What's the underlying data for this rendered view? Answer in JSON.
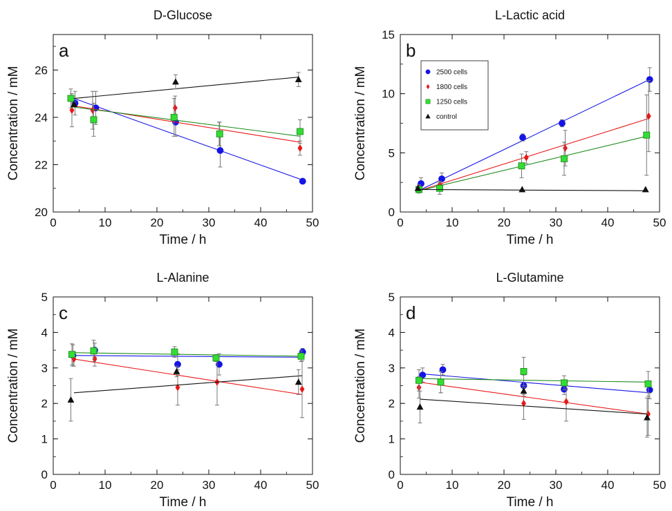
{
  "chart_data": [
    {
      "type": "scatter",
      "panel_letter": "a",
      "title": "D-Glucose",
      "xlabel": "Time / h",
      "ylabel": "Concentration / mM",
      "xlim": [
        0,
        50
      ],
      "ylim": [
        20,
        27.5
      ],
      "xticks": [
        0,
        10,
        20,
        30,
        40,
        50
      ],
      "yticks": [
        20,
        22,
        24,
        26
      ],
      "fit_lines": true,
      "legend": false,
      "series": [
        {
          "name": "2500 cells",
          "color": "#1414e6",
          "marker": "circle",
          "points": [
            {
              "x": 4.2,
              "y": 24.6,
              "err": 0.5
            },
            {
              "x": 8.2,
              "y": 24.4,
              "err": 0.7
            },
            {
              "x": 23.6,
              "y": 23.8,
              "err": 0.6
            },
            {
              "x": 32.2,
              "y": 22.6,
              "err": 0.7
            },
            {
              "x": 48.1,
              "y": 21.3,
              "err": 0.1
            }
          ],
          "fit": [
            [
              4.0,
              24.8
            ],
            [
              48.1,
              21.35
            ]
          ]
        },
        {
          "name": "1800 cells",
          "color": "#e81818",
          "marker": "diamond",
          "points": [
            {
              "x": 3.6,
              "y": 24.3,
              "err": 0.7
            },
            {
              "x": 7.6,
              "y": 24.3,
              "err": 0.8
            },
            {
              "x": 23.5,
              "y": 24.4,
              "err": 0.5
            },
            {
              "x": 32.0,
              "y": 23.3,
              "err": 0.5
            },
            {
              "x": 47.6,
              "y": 22.7,
              "err": 0.3
            }
          ],
          "fit": [
            [
              3.6,
              24.5
            ],
            [
              47.6,
              22.95
            ]
          ]
        },
        {
          "name": "1250 cells",
          "color": "#1e8c1e",
          "fill": "#33dd33",
          "marker": "square",
          "points": [
            {
              "x": 3.4,
              "y": 24.8,
              "err": 0.4
            },
            {
              "x": 7.8,
              "y": 23.9,
              "err": 0.7
            },
            {
              "x": 23.3,
              "y": 24.0,
              "err": 0.8
            },
            {
              "x": 32.1,
              "y": 23.3,
              "err": 0.5
            },
            {
              "x": 47.6,
              "y": 23.4,
              "err": 0.5
            }
          ],
          "fit": [
            [
              3.4,
              24.45
            ],
            [
              47.6,
              23.2
            ]
          ]
        },
        {
          "name": "control",
          "color": "#111111",
          "marker": "triangle",
          "points": [
            {
              "x": 4.0,
              "y": 24.55,
              "err": 0.1
            },
            {
              "x": 23.6,
              "y": 25.5,
              "err": 0.3
            },
            {
              "x": 47.3,
              "y": 25.6,
              "err": 0.3
            }
          ],
          "fit": [
            [
              4.0,
              24.8
            ],
            [
              47.3,
              25.7
            ]
          ]
        }
      ]
    },
    {
      "type": "scatter",
      "panel_letter": "b",
      "title": "L-Lactic acid",
      "xlabel": "Time / h",
      "ylabel": "Concentration / mM",
      "xlim": [
        0,
        50
      ],
      "ylim": [
        0,
        15
      ],
      "xticks": [
        0,
        10,
        20,
        30,
        40,
        50
      ],
      "yticks": [
        0,
        5,
        10,
        15
      ],
      "fit_lines": true,
      "legend": true,
      "legend_position": "upper-left",
      "series": [
        {
          "name": "2500 cells",
          "color": "#1414e6",
          "marker": "circle",
          "points": [
            {
              "x": 4.0,
              "y": 2.4,
              "err": 0.5
            },
            {
              "x": 8.0,
              "y": 2.8,
              "err": 0.5
            },
            {
              "x": 23.6,
              "y": 6.3,
              "err": 0.3
            },
            {
              "x": 31.2,
              "y": 7.5,
              "err": 0.3
            },
            {
              "x": 48.1,
              "y": 11.2,
              "err": 1.0
            }
          ],
          "fit": [
            [
              3.5,
              1.8
            ],
            [
              48.1,
              11.2
            ]
          ]
        },
        {
          "name": "1800 cells",
          "color": "#e81818",
          "marker": "diamond",
          "points": [
            {
              "x": 3.6,
              "y": 2.0,
              "err": 0.3
            },
            {
              "x": 7.6,
              "y": 2.3,
              "err": 0.3
            },
            {
              "x": 24.3,
              "y": 4.6,
              "err": 0.5
            },
            {
              "x": 31.8,
              "y": 5.4,
              "err": 1.5
            },
            {
              "x": 47.9,
              "y": 8.1,
              "err": 3.0
            }
          ],
          "fit": [
            [
              3.6,
              1.8
            ],
            [
              47.9,
              7.9
            ]
          ]
        },
        {
          "name": "1250 cells",
          "color": "#1e8c1e",
          "fill": "#33dd33",
          "marker": "square",
          "points": [
            {
              "x": 3.6,
              "y": 1.9,
              "err": 0.3
            },
            {
              "x": 7.6,
              "y": 2.0,
              "err": 0.5
            },
            {
              "x": 23.4,
              "y": 3.9,
              "err": 1.0
            },
            {
              "x": 31.6,
              "y": 4.5,
              "err": 1.4
            },
            {
              "x": 47.5,
              "y": 6.5,
              "err": 3.4
            }
          ],
          "fit": [
            [
              3.6,
              1.8
            ],
            [
              47.5,
              6.4
            ]
          ]
        },
        {
          "name": "control",
          "color": "#111111",
          "marker": "triangle",
          "points": [
            {
              "x": 3.4,
              "y": 2.0,
              "err": 0.0
            },
            {
              "x": 23.5,
              "y": 1.9,
              "err": 0.0
            },
            {
              "x": 47.3,
              "y": 1.9,
              "err": 0.0
            }
          ],
          "fit": [
            [
              3.4,
              1.9
            ],
            [
              47.3,
              1.8
            ]
          ]
        }
      ]
    },
    {
      "type": "scatter",
      "panel_letter": "c",
      "title": "L-Alanine",
      "xlabel": "Time / h",
      "ylabel": "Concentration / mM",
      "xlim": [
        0,
        50
      ],
      "ylim": [
        0,
        5
      ],
      "xticks": [
        0,
        10,
        20,
        30,
        40,
        50
      ],
      "yticks": [
        0,
        1,
        2,
        3,
        4,
        5
      ],
      "fit_lines": true,
      "legend": false,
      "series": [
        {
          "name": "2500 cells",
          "color": "#1414e6",
          "marker": "circle",
          "points": [
            {
              "x": 3.8,
              "y": 3.35,
              "err": 0.3
            },
            {
              "x": 8.0,
              "y": 3.5,
              "err": 0.2
            },
            {
              "x": 24.0,
              "y": 3.1,
              "err": 0.3
            },
            {
              "x": 32.0,
              "y": 3.1,
              "err": 0.3
            },
            {
              "x": 48.1,
              "y": 3.45,
              "err": 0.1
            }
          ],
          "fit": [
            [
              3.8,
              3.35
            ],
            [
              48.1,
              3.3
            ]
          ]
        },
        {
          "name": "1800 cells",
          "color": "#e81818",
          "marker": "diamond",
          "points": [
            {
              "x": 4.0,
              "y": 3.25,
              "err": 0.2
            },
            {
              "x": 8.0,
              "y": 3.25,
              "err": 0.2
            },
            {
              "x": 24.0,
              "y": 2.45,
              "err": 0.5
            },
            {
              "x": 31.6,
              "y": 2.6,
              "err": 0.65
            },
            {
              "x": 48.0,
              "y": 2.4,
              "err": 0.8
            }
          ],
          "fit": [
            [
              4.0,
              3.25
            ],
            [
              48.0,
              2.25
            ]
          ]
        },
        {
          "name": "1250 cells",
          "color": "#1e8c1e",
          "fill": "#33dd33",
          "marker": "square",
          "points": [
            {
              "x": 3.6,
              "y": 3.38,
              "err": 0.3
            },
            {
              "x": 7.8,
              "y": 3.48,
              "err": 0.3
            },
            {
              "x": 23.4,
              "y": 3.45,
              "err": 0.15
            },
            {
              "x": 31.4,
              "y": 3.28,
              "err": 0.1
            },
            {
              "x": 47.8,
              "y": 3.33,
              "err": 0.15
            }
          ],
          "fit": [
            [
              3.6,
              3.43
            ],
            [
              47.8,
              3.33
            ]
          ]
        },
        {
          "name": "control",
          "color": "#111111",
          "marker": "triangle",
          "points": [
            {
              "x": 3.4,
              "y": 2.1,
              "err": 0.6
            },
            {
              "x": 23.8,
              "y": 2.9,
              "err": 0.15
            },
            {
              "x": 47.3,
              "y": 2.6,
              "err": 0.35
            }
          ],
          "fit": [
            [
              4.0,
              2.3
            ],
            [
              48.0,
              2.78
            ]
          ]
        }
      ]
    },
    {
      "type": "scatter",
      "panel_letter": "d",
      "title": "L-Glutamine",
      "xlabel": "Time / h",
      "ylabel": "Concentration / mM",
      "xlim": [
        0,
        50
      ],
      "ylim": [
        0,
        5
      ],
      "xticks": [
        0,
        10,
        20,
        30,
        40,
        50
      ],
      "yticks": [
        0,
        1,
        2,
        3,
        4,
        5
      ],
      "fit_lines": true,
      "legend": false,
      "series": [
        {
          "name": "2500 cells",
          "color": "#1414e6",
          "marker": "circle",
          "points": [
            {
              "x": 4.3,
              "y": 2.8,
              "err": 0.2
            },
            {
              "x": 8.2,
              "y": 2.95,
              "err": 0.15
            },
            {
              "x": 23.8,
              "y": 2.5,
              "err": 0.3
            },
            {
              "x": 31.6,
              "y": 2.4,
              "err": 0.15
            },
            {
              "x": 48.1,
              "y": 2.38,
              "err": 0.25
            }
          ],
          "fit": [
            [
              4.3,
              2.83
            ],
            [
              48.1,
              2.3
            ]
          ]
        },
        {
          "name": "1800 cells",
          "color": "#e81818",
          "marker": "diamond",
          "points": [
            {
              "x": 3.6,
              "y": 2.45,
              "err": 0.3
            },
            {
              "x": 7.8,
              "y": 2.6,
              "err": 0.3
            },
            {
              "x": 23.8,
              "y": 2.0,
              "err": 0.45
            },
            {
              "x": 32.0,
              "y": 2.05,
              "err": 0.55
            },
            {
              "x": 47.8,
              "y": 1.7,
              "err": 0.6
            }
          ],
          "fit": [
            [
              3.6,
              2.6
            ],
            [
              47.8,
              1.7
            ]
          ]
        },
        {
          "name": "1250 cells",
          "color": "#1e8c1e",
          "fill": "#33dd33",
          "marker": "square",
          "points": [
            {
              "x": 3.6,
              "y": 2.65,
              "err": 0.3
            },
            {
              "x": 7.8,
              "y": 2.6,
              "err": 0.3
            },
            {
              "x": 23.8,
              "y": 2.9,
              "err": 0.4
            },
            {
              "x": 31.6,
              "y": 2.58,
              "err": 0.2
            },
            {
              "x": 47.8,
              "y": 2.55,
              "err": 0.35
            }
          ],
          "fit": [
            [
              3.6,
              2.7
            ],
            [
              47.8,
              2.6
            ]
          ]
        },
        {
          "name": "control",
          "color": "#111111",
          "marker": "triangle",
          "points": [
            {
              "x": 3.8,
              "y": 1.9,
              "err": 0.45
            },
            {
              "x": 23.8,
              "y": 2.35,
              "err": 0.1
            },
            {
              "x": 47.6,
              "y": 1.6,
              "err": 0.55
            }
          ],
          "fit": [
            [
              3.8,
              2.12
            ],
            [
              47.6,
              1.7
            ]
          ]
        }
      ]
    }
  ]
}
